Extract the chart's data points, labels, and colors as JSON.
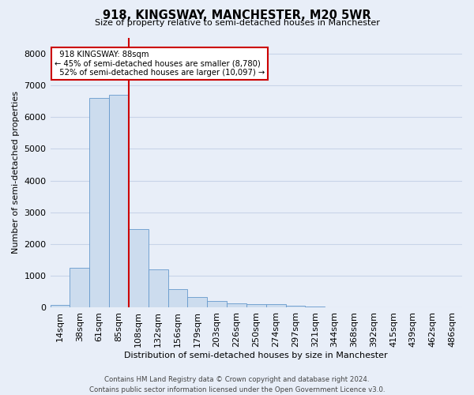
{
  "title": "918, KINGSWAY, MANCHESTER, M20 5WR",
  "subtitle": "Size of property relative to semi-detached houses in Manchester",
  "xlabel": "Distribution of semi-detached houses by size in Manchester",
  "ylabel": "Number of semi-detached properties",
  "bar_labels": [
    "14sqm",
    "38sqm",
    "61sqm",
    "85sqm",
    "108sqm",
    "132sqm",
    "156sqm",
    "179sqm",
    "203sqm",
    "226sqm",
    "250sqm",
    "274sqm",
    "297sqm",
    "321sqm",
    "344sqm",
    "368sqm",
    "392sqm",
    "415sqm",
    "439sqm",
    "462sqm",
    "486sqm"
  ],
  "bar_values": [
    80,
    1250,
    6600,
    6700,
    2480,
    1200,
    580,
    340,
    200,
    130,
    120,
    110,
    70,
    35,
    20,
    10,
    5,
    3,
    2,
    1,
    1
  ],
  "bar_color": "#ccdcee",
  "bar_edge_color": "#6699cc",
  "property_label": "918 KINGSWAY: 88sqm",
  "pct_smaller": 45,
  "count_smaller": 8780,
  "pct_larger": 52,
  "count_larger": 10097,
  "vline_color": "#cc0000",
  "vline_x_index": 3.5,
  "annotation_box_color": "#ffffff",
  "annotation_box_edge": "#cc0000",
  "ylim": [
    0,
    8500
  ],
  "yticks": [
    0,
    1000,
    2000,
    3000,
    4000,
    5000,
    6000,
    7000,
    8000
  ],
  "grid_color": "#c8d4e8",
  "background_color": "#e8eef8",
  "footer": "Contains HM Land Registry data © Crown copyright and database right 2024.\nContains public sector information licensed under the Open Government Licence v3.0."
}
